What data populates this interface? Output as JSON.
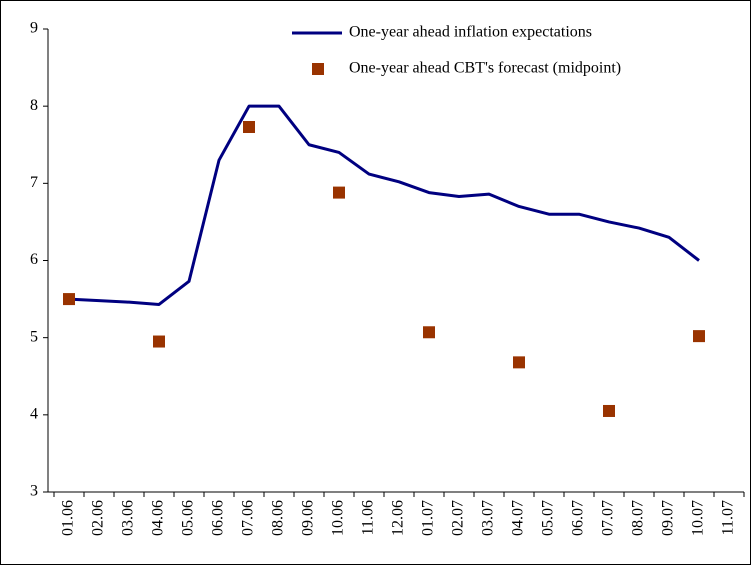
{
  "chart_data": {
    "type": "line",
    "categories": [
      "01.06",
      "02.06",
      "03.06",
      "04.06",
      "05.06",
      "06.06",
      "07.06",
      "08.06",
      "09.06",
      "10.06",
      "11.06",
      "12.06",
      "01.07",
      "02.07",
      "03.07",
      "04.07",
      "05.07",
      "06.07",
      "07.07",
      "08.07",
      "09.07",
      "10.07",
      "11.07"
    ],
    "series": [
      {
        "name": "One-year ahead inflation expectations",
        "color": "#000080",
        "mark": "line",
        "values": [
          5.5,
          5.48,
          5.46,
          5.43,
          5.73,
          7.3,
          8.0,
          8.0,
          7.5,
          7.4,
          7.12,
          7.02,
          6.88,
          6.83,
          6.86,
          6.7,
          6.6,
          6.6,
          6.5,
          6.42,
          6.3,
          6.0,
          null
        ]
      },
      {
        "name": "One-year ahead CBT's forecast (midpoint)",
        "color": "#993300",
        "mark": "square",
        "values": [
          5.5,
          null,
          null,
          4.95,
          null,
          null,
          7.73,
          null,
          null,
          6.88,
          null,
          null,
          5.07,
          null,
          null,
          4.68,
          null,
          null,
          4.05,
          null,
          null,
          5.02,
          null
        ]
      }
    ],
    "ylim": [
      3,
      9
    ],
    "yticks": [
      3,
      4,
      5,
      6,
      7,
      8,
      9
    ],
    "legend": "top-right"
  }
}
